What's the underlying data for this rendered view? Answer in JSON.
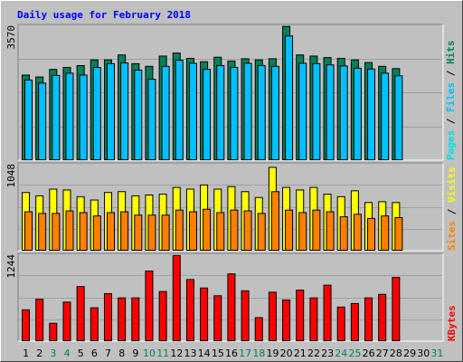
{
  "chart_data": {
    "type": "bar",
    "title": "Daily usage for February 2018",
    "days": [
      "1",
      "2",
      "3",
      "4",
      "5",
      "6",
      "7",
      "8",
      "9",
      "10",
      "11",
      "12",
      "13",
      "14",
      "15",
      "16",
      "17",
      "18",
      "19",
      "20",
      "21",
      "22",
      "23",
      "24",
      "25",
      "26",
      "27",
      "28",
      "29",
      "30",
      "31"
    ],
    "weekend_days": [
      "3",
      "4",
      "10",
      "11",
      "17",
      "18",
      "24",
      "25",
      "31"
    ],
    "colors": {
      "background": "#c0c0c0",
      "title": "#0000ff",
      "hits": "#00805c",
      "files": "#00c0ff",
      "pages": "#00e0e0",
      "visits": "#ffff00",
      "sites": "#ff8000",
      "kbytes": "#ff0000",
      "weekday_label": "#000000",
      "weekend_label": "#00805c",
      "grid": "#808080"
    },
    "panels": [
      {
        "name": "hits-files-pages",
        "max_label": "3570",
        "ymax": 3570,
        "side_labels": [
          {
            "text": "Pages",
            "color": "#00e0e0"
          },
          {
            "text": " / ",
            "color": "#000000"
          },
          {
            "text": "Files",
            "color": "#00c0ff"
          },
          {
            "text": " / ",
            "color": "#000000"
          },
          {
            "text": "Hits",
            "color": "#00805c"
          }
        ],
        "series": [
          {
            "name": "Hits",
            "color": "#00805c",
            "values": [
              2250,
              2200,
              2400,
              2450,
              2500,
              2650,
              2650,
              2780,
              2550,
              2480,
              2750,
              2830,
              2690,
              2600,
              2720,
              2620,
              2680,
              2650,
              2680,
              3530,
              2780,
              2750,
              2710,
              2690,
              2650,
              2580,
              2480,
              2420,
              null,
              null,
              null
            ]
          },
          {
            "name": "Files",
            "color": "#00c0ff",
            "values": [
              2120,
              2040,
              2240,
              2300,
              2250,
              2450,
              2550,
              2570,
              2380,
              2140,
              2480,
              2640,
              2560,
              2400,
              2500,
              2450,
              2560,
              2500,
              2480,
              3280,
              2560,
              2550,
              2520,
              2490,
              2430,
              2410,
              2300,
              2230,
              null,
              null,
              null
            ]
          }
        ]
      },
      {
        "name": "visits-sites",
        "max_label": "1048",
        "ymax": 1048,
        "side_labels": [
          {
            "text": "Sites",
            "color": "#ff8000"
          },
          {
            "text": " / ",
            "color": "#000000"
          },
          {
            "text": "Visits",
            "color": "#ffff00"
          }
        ],
        "series": [
          {
            "name": "Visits",
            "color": "#ffff00",
            "values": [
              700,
              660,
              740,
              730,
              650,
              610,
              700,
              710,
              660,
              670,
              680,
              760,
              740,
              790,
              740,
              770,
              710,
              640,
              1000,
              760,
              730,
              760,
              680,
              650,
              720,
              580,
              590,
              580,
              null,
              null,
              null
            ]
          },
          {
            "name": "Sites",
            "color": "#ff8000",
            "values": [
              470,
              450,
              450,
              480,
              460,
              420,
              460,
              470,
              430,
              430,
              430,
              490,
              470,
              500,
              460,
              490,
              480,
              450,
              710,
              490,
              460,
              490,
              470,
              410,
              440,
              390,
              420,
              400,
              null,
              null,
              null
            ]
          }
        ]
      },
      {
        "name": "kbytes",
        "max_label": "1244",
        "ymax": 1244,
        "side_labels": [
          {
            "text": "KBytes",
            "color": "#ff0000"
          }
        ],
        "series": [
          {
            "name": "KBytes",
            "color": "#ff0000",
            "values": [
              450,
              600,
              260,
              560,
              780,
              480,
              680,
              620,
              620,
              1000,
              710,
              1220,
              880,
              760,
              650,
              960,
              720,
              340,
              700,
              590,
              730,
              620,
              800,
              490,
              540,
              620,
              670,
              910,
              null,
              null,
              null
            ]
          }
        ]
      }
    ]
  }
}
